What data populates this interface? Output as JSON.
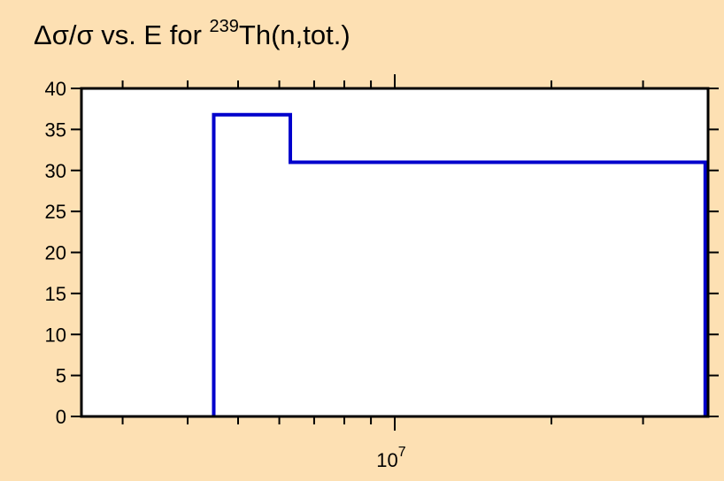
{
  "chart_data": {
    "type": "line",
    "title": {
      "prefix": "Δσ/σ vs. E for ",
      "superscript": "239",
      "suffix": "Th(n,tot.)"
    },
    "xlabel": "",
    "ylabel": "",
    "x_scale": "log",
    "xlim": [
      2500000,
      40000000
    ],
    "ylim": [
      0,
      40
    ],
    "y_ticks": [
      0,
      5,
      10,
      15,
      20,
      25,
      30,
      35,
      40
    ],
    "x_major_tick": {
      "value": 10000000,
      "base": "10",
      "exponent": "7"
    },
    "x_minor_ticks": [
      3000000,
      4000000,
      5000000,
      6000000,
      7000000,
      8000000,
      9000000,
      20000000,
      30000000
    ],
    "grid": false,
    "series": [
      {
        "color": "#0000cc",
        "x": [
          4490000,
          4490000,
          6300000,
          6300000,
          39500000,
          39500000
        ],
        "y": [
          0,
          36.8,
          36.8,
          31.0,
          31.0,
          0
        ]
      }
    ]
  }
}
